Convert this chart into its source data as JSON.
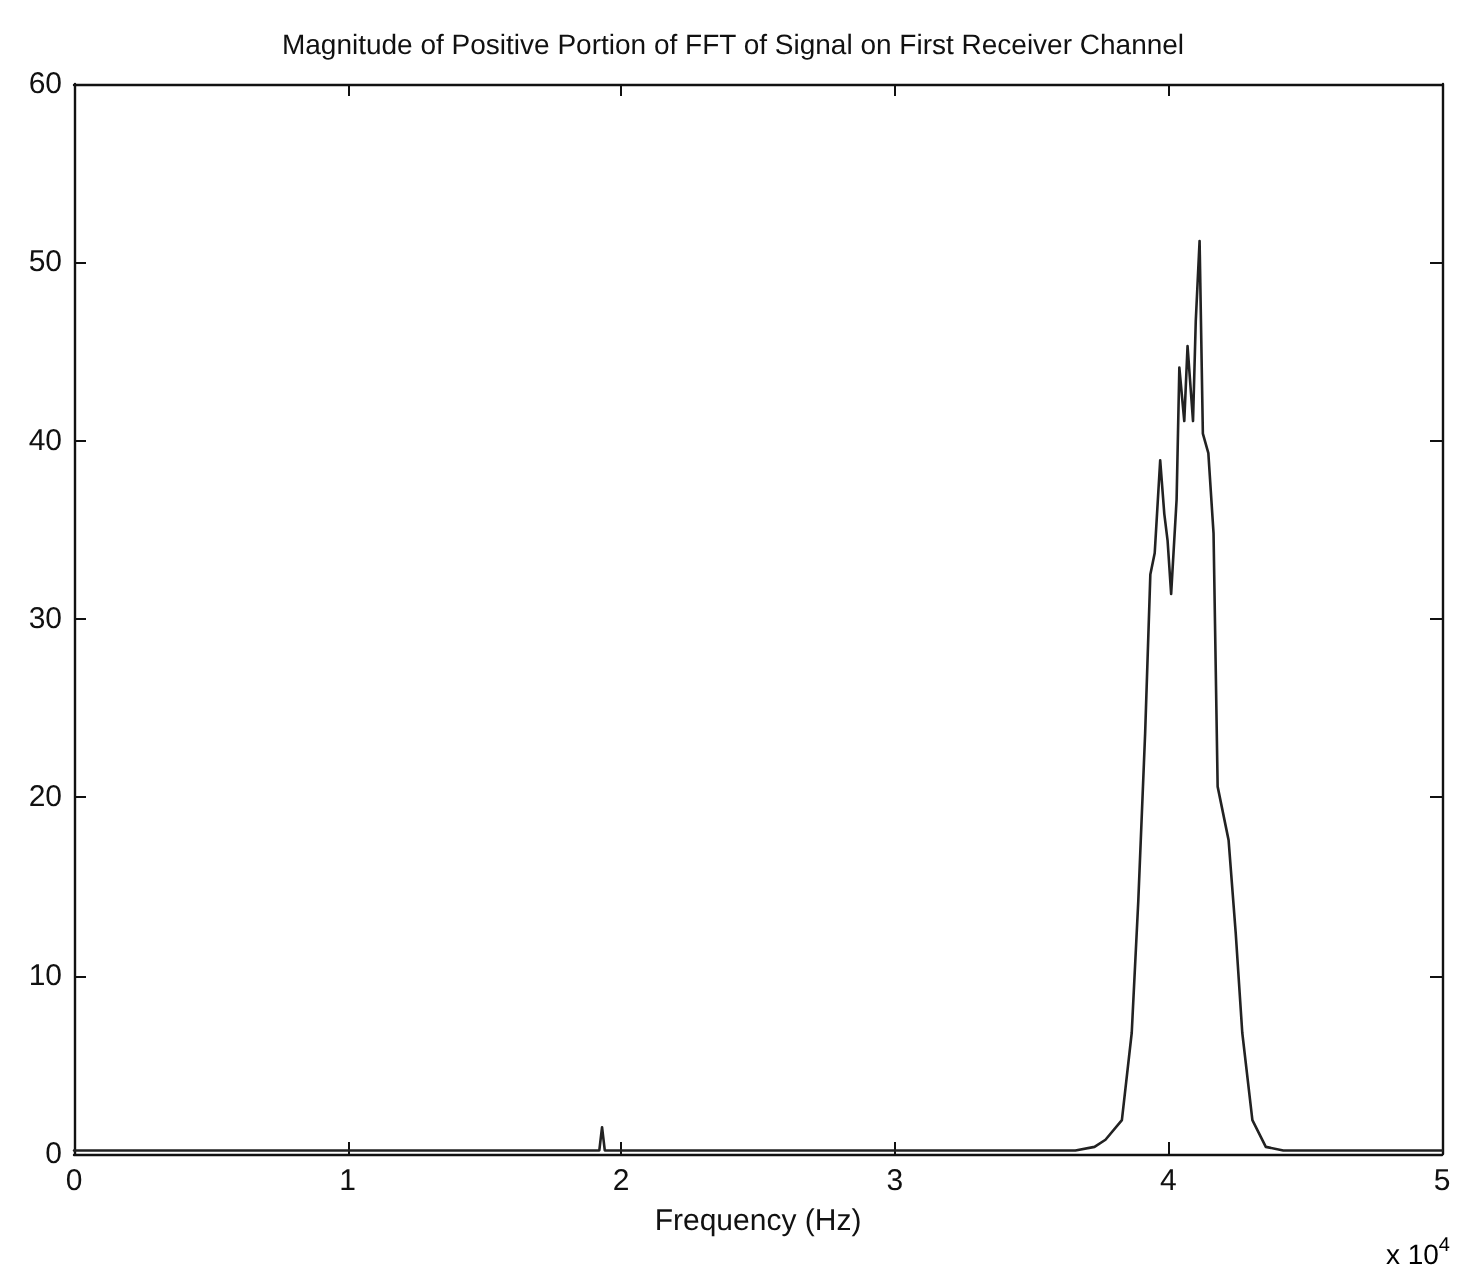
{
  "chart_data": {
    "type": "line",
    "title": "Magnitude of Positive Portion of FFT of Signal on First Receiver Channel",
    "xlabel": "Frequency (Hz)",
    "annotations": [
      "x 10$^{4}$"
    ],
    "series": [
      {
        "color": "#222222",
        "x": [
          0,
          0.5,
          1.0,
          1.5,
          1.9,
          1.92,
          1.93,
          1.94,
          2.0,
          2.5,
          3.0,
          3.5,
          3.6,
          3.66,
          3.73,
          3.77,
          3.83,
          3.866,
          3.89,
          3.915,
          3.934,
          3.95,
          3.97,
          3.985,
          3.997,
          4.01,
          4.03,
          4.04,
          4.058,
          4.07,
          4.09,
          4.1,
          4.114,
          4.126,
          4.146,
          4.165,
          4.18,
          4.22,
          4.246,
          4.27,
          4.307,
          4.356,
          4.42,
          4.6,
          5.0
        ],
        "values": [
          0.2,
          0.2,
          0.2,
          0.2,
          0.2,
          0.2,
          1.5,
          0.2,
          0.2,
          0.2,
          0.2,
          0.2,
          0.2,
          0.2,
          0.4,
          0.8,
          1.9,
          6.8,
          14.2,
          23.6,
          32.5,
          33.7,
          38.9,
          35.9,
          34.4,
          31.4,
          36.7,
          44.1,
          41.1,
          45.3,
          41.1,
          46.7,
          51.2,
          40.4,
          39.3,
          34.8,
          20.6,
          17.6,
          12.4,
          6.8,
          1.9,
          0.4,
          0.2,
          0.2,
          0.2
        ]
      }
    ],
    "xlim": [
      0,
      5
    ],
    "xticks": [
      0,
      1,
      2,
      3,
      4,
      5
    ],
    "ylim": [
      0,
      60
    ],
    "yticks": [
      0,
      10,
      20,
      30,
      40,
      50,
      60
    ],
    "grid": false,
    "marker": "none",
    "line_style": "solid"
  }
}
